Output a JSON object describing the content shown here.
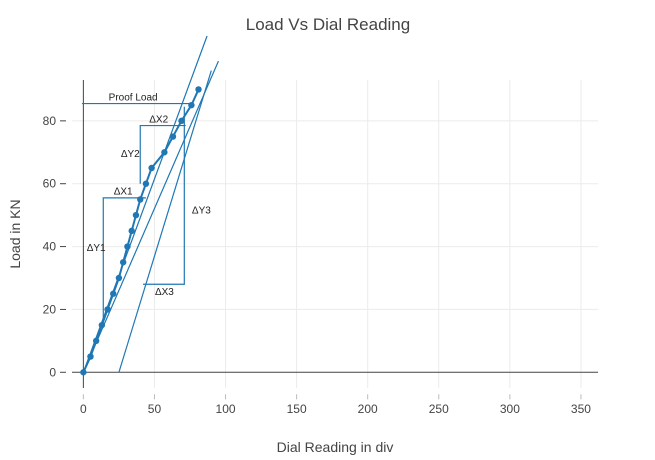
{
  "chart_data": {
    "type": "line",
    "title": "Load Vs Dial Reading",
    "xlabel": "Dial Reading in div",
    "ylabel": "Load in KN",
    "xlim": [
      -8,
      362
    ],
    "ylim": [
      -5,
      93
    ],
    "x_ticks": [
      0,
      50,
      100,
      150,
      200,
      250,
      300,
      350
    ],
    "y_ticks": [
      0,
      20,
      40,
      60,
      80
    ],
    "grid": true,
    "legend": "none",
    "colors": {
      "series": "#1f77b4",
      "text": "#444444",
      "grid": "#ebebeb"
    },
    "series": [
      {
        "x": [
          0,
          5,
          9,
          13,
          17,
          21,
          25,
          28,
          31,
          34,
          37,
          40,
          44,
          48,
          57,
          63,
          69,
          76,
          81
        ],
        "y": [
          0,
          5,
          10,
          15,
          20,
          25,
          30,
          35,
          40,
          45,
          50,
          55,
          60,
          65,
          70,
          75,
          80,
          85,
          90
        ]
      }
    ],
    "reference_lines": [
      {
        "x": [
          0,
          87
        ],
        "y": [
          0,
          107
        ]
      },
      {
        "x": [
          0,
          95
        ],
        "y": [
          0,
          99
        ]
      },
      {
        "x": [
          25,
          90
        ],
        "y": [
          0,
          96
        ]
      },
      {
        "x": [
          -1,
          76
        ],
        "y": [
          85.5,
          85.5
        ]
      }
    ],
    "construction_lines": [
      {
        "x": [
          14,
          14,
          44
        ],
        "y": [
          17,
          55.5,
          55.5
        ]
      },
      {
        "x": [
          40,
          40,
          72
        ],
        "y": [
          60,
          78.5,
          78.5
        ]
      },
      {
        "x": [
          42,
          71,
          71
        ],
        "y": [
          28,
          28,
          84.5
        ]
      }
    ],
    "annotations": [
      {
        "text": "Proof Load",
        "x": 35,
        "y": 87.5
      },
      {
        "text": "ΔX1",
        "x": 28,
        "y": 57.5
      },
      {
        "text": "ΔY1",
        "x": 9,
        "y": 39.5
      },
      {
        "text": "ΔX2",
        "x": 53,
        "y": 80.5
      },
      {
        "text": "ΔY2",
        "x": 33,
        "y": 69.5
      },
      {
        "text": "ΔY3",
        "x": 83,
        "y": 51.5
      },
      {
        "text": "ΔX3",
        "x": 57,
        "y": 25.5
      }
    ]
  }
}
